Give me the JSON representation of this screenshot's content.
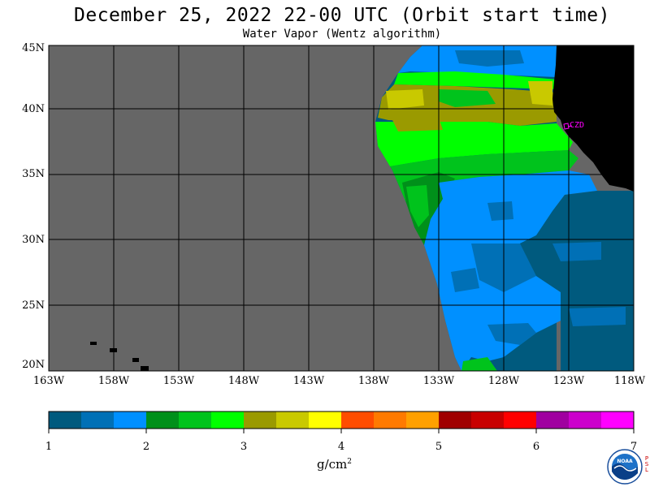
{
  "title": "December 25, 2022  22-00 UTC  (Orbit start time)",
  "subtitle": "Water Vapor (Wentz algorithm)",
  "map": {
    "lat_labels": [
      "45N",
      "40N",
      "35N",
      "30N",
      "25N",
      "20N"
    ],
    "lon_labels": [
      "163W",
      "158W",
      "153W",
      "148W",
      "143W",
      "138W",
      "133W",
      "128W",
      "123W",
      "118W"
    ],
    "station_label": "CZD",
    "colors": {
      "no_data": "#666666",
      "land": "#000000",
      "grid": "#000000",
      "station": "#ff00ff"
    }
  },
  "colorbar": {
    "tick_labels": [
      "1",
      "2",
      "3",
      "4",
      "5",
      "6",
      "7"
    ],
    "colors": [
      "#005a7e",
      "#0070b6",
      "#0090ff",
      "#00901a",
      "#00c31c",
      "#00ff00",
      "#9a9a00",
      "#c9c900",
      "#ffff00",
      "#ff4d00",
      "#ff7a00",
      "#ffa000",
      "#a00000",
      "#c80000",
      "#ff0000",
      "#a000a0",
      "#cc00cc",
      "#ff00ff"
    ],
    "unit_base": "g/cm",
    "unit_exp": "2"
  },
  "logo": {
    "name": "NOAA",
    "side_text": [
      "P",
      "S",
      "L"
    ]
  }
}
